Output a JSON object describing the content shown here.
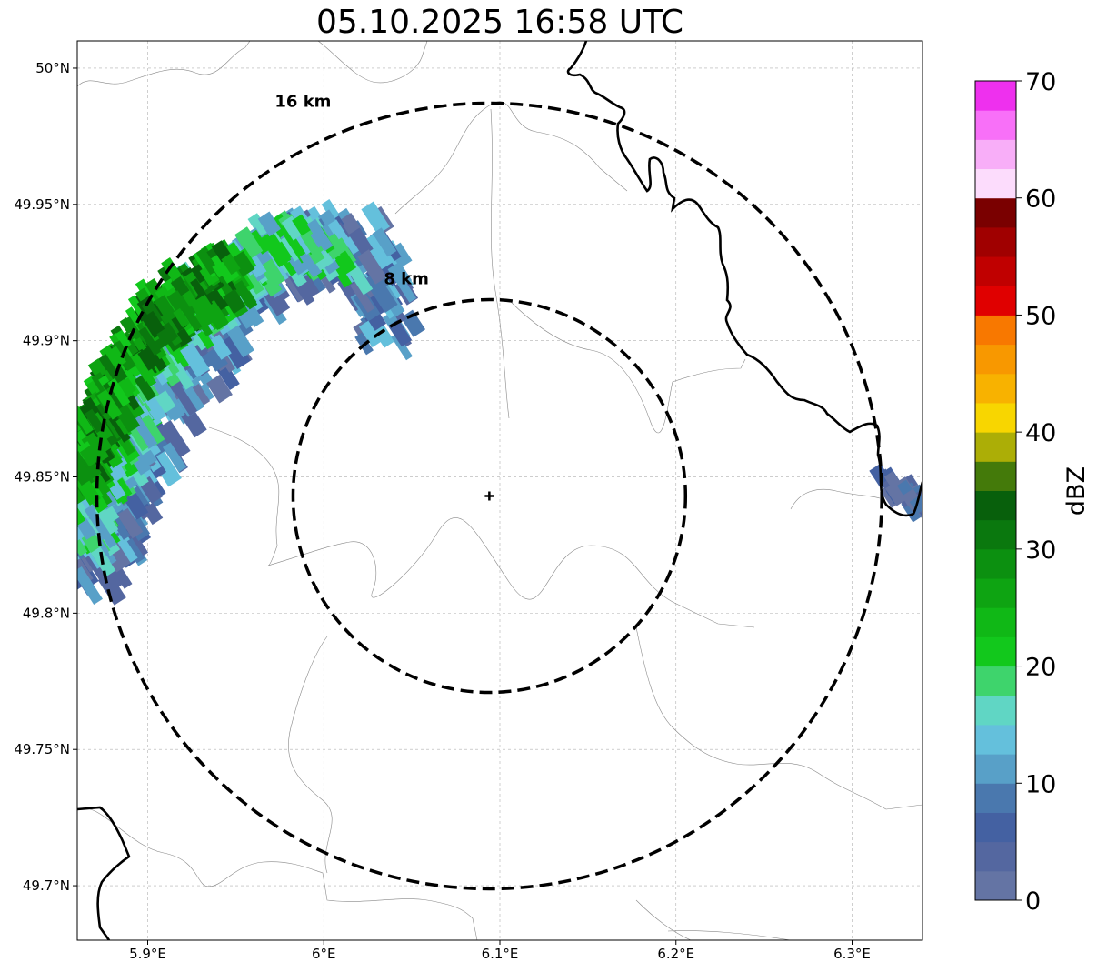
{
  "title": "05.10.2025 16:58 UTC",
  "map": {
    "lon_range": [
      5.86,
      6.34
    ],
    "lat_range": [
      49.68,
      50.01
    ],
    "x_ticks": [
      {
        "value": 5.9,
        "label": "5.9°E"
      },
      {
        "value": 6.0,
        "label": "6°E"
      },
      {
        "value": 6.1,
        "label": "6.1°E"
      },
      {
        "value": 6.2,
        "label": "6.2°E"
      },
      {
        "value": 6.3,
        "label": "6.3°E"
      }
    ],
    "y_ticks": [
      {
        "value": 50.0,
        "label": "50°N"
      },
      {
        "value": 49.95,
        "label": "49.95°N"
      },
      {
        "value": 49.9,
        "label": "49.9°N"
      },
      {
        "value": 49.85,
        "label": "49.85°N"
      },
      {
        "value": 49.8,
        "label": "49.8°N"
      },
      {
        "value": 49.75,
        "label": "49.75°N"
      },
      {
        "value": 49.7,
        "label": "49.7°N"
      }
    ],
    "radar_site": {
      "lon": 6.094,
      "lat": 49.843
    },
    "range_rings": [
      {
        "radius_km": 8,
        "label": "8 km"
      },
      {
        "radius_km": 16,
        "label": "16 km"
      }
    ],
    "grid_color": "#b0b0b0",
    "border_color": "#000000",
    "admin_color": "#888888"
  },
  "colorbar": {
    "label": "dBZ",
    "min": 0,
    "max": 70,
    "step": 2.5,
    "ticks": [
      "0",
      "10",
      "20",
      "30",
      "40",
      "50",
      "60",
      "70"
    ],
    "colors": [
      "#6474a4",
      "#5467a0",
      "#4461a2",
      "#4a78ae",
      "#58a0c8",
      "#64c0dc",
      "#60d6c4",
      "#3ed46c",
      "#12c81c",
      "#10b816",
      "#0ea412",
      "#0c9010",
      "#0a780e",
      "#08600c",
      "#447a0a",
      "#acae06",
      "#f8d600",
      "#f8b200",
      "#f89800",
      "#f87800",
      "#e00000",
      "#c00000",
      "#a00000",
      "#7a0000",
      "#fcdcfc",
      "#f8aef8",
      "#f870f8",
      "#ee30ee"
    ]
  }
}
